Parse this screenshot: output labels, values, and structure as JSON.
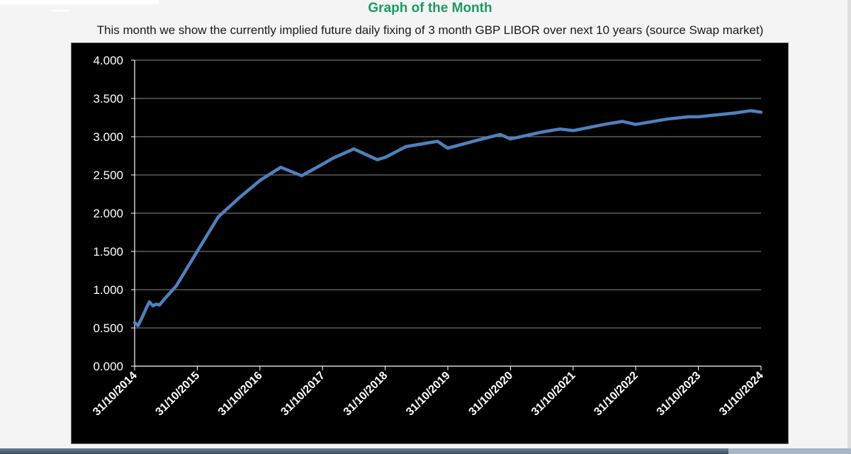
{
  "page": {
    "heading": "Graph of the Month",
    "subtitle": "This month we show the currently implied future daily fixing of 3 month GBP LIBOR over next 10 years (source Swap market)"
  },
  "colors": {
    "heading": "#1e9a64",
    "chart_background": "#000000",
    "line": "#4f81bd",
    "gridline": "#8c8c8c",
    "axis_text": "#ffffff"
  },
  "chart_data": {
    "type": "line",
    "title": "",
    "xlabel": "",
    "ylabel": "",
    "ylim": [
      0,
      4
    ],
    "y_ticks": [
      "0.000",
      "0.500",
      "1.000",
      "1.500",
      "2.000",
      "2.500",
      "3.000",
      "3.500",
      "4.000"
    ],
    "x_ticks": [
      "31/10/2014",
      "31/10/2015",
      "31/10/2016",
      "31/10/2017",
      "31/10/2018",
      "31/10/2019",
      "31/10/2020",
      "31/10/2021",
      "31/10/2022",
      "31/10/2023",
      "31/10/2024"
    ],
    "grid": "horizontal",
    "legend": "none",
    "series": [
      {
        "x": [
          "2014-10-31",
          "2014-11-20",
          "2014-12-10",
          "2015-01-05",
          "2015-01-25",
          "2015-02-15",
          "2015-03-05",
          "2015-03-25",
          "2015-04-20",
          "2015-07-01",
          "2015-10-31",
          "2016-03-01",
          "2016-07-01",
          "2016-11-01",
          "2017-03-01",
          "2017-07-01",
          "2017-10-15",
          "2018-01-01",
          "2018-05-01",
          "2018-09-15",
          "2018-10-31",
          "2019-03-01",
          "2019-09-01",
          "2019-10-31",
          "2020-05-01",
          "2020-09-01",
          "2020-10-31",
          "2021-05-01",
          "2021-08-15",
          "2021-10-31",
          "2022-05-01",
          "2022-08-15",
          "2022-10-31",
          "2023-05-01",
          "2023-09-01",
          "2023-10-31",
          "2024-06-01",
          "2024-09-01",
          "2024-10-31"
        ],
        "y": [
          0.57,
          0.53,
          0.62,
          0.75,
          0.84,
          0.79,
          0.81,
          0.8,
          0.87,
          1.05,
          1.5,
          1.95,
          2.2,
          2.43,
          2.6,
          2.49,
          2.62,
          2.72,
          2.84,
          2.7,
          2.73,
          2.87,
          2.94,
          2.85,
          2.96,
          3.03,
          2.97,
          3.06,
          3.1,
          3.08,
          3.16,
          3.2,
          3.16,
          3.23,
          3.26,
          3.26,
          3.31,
          3.34,
          3.32
        ]
      }
    ]
  }
}
